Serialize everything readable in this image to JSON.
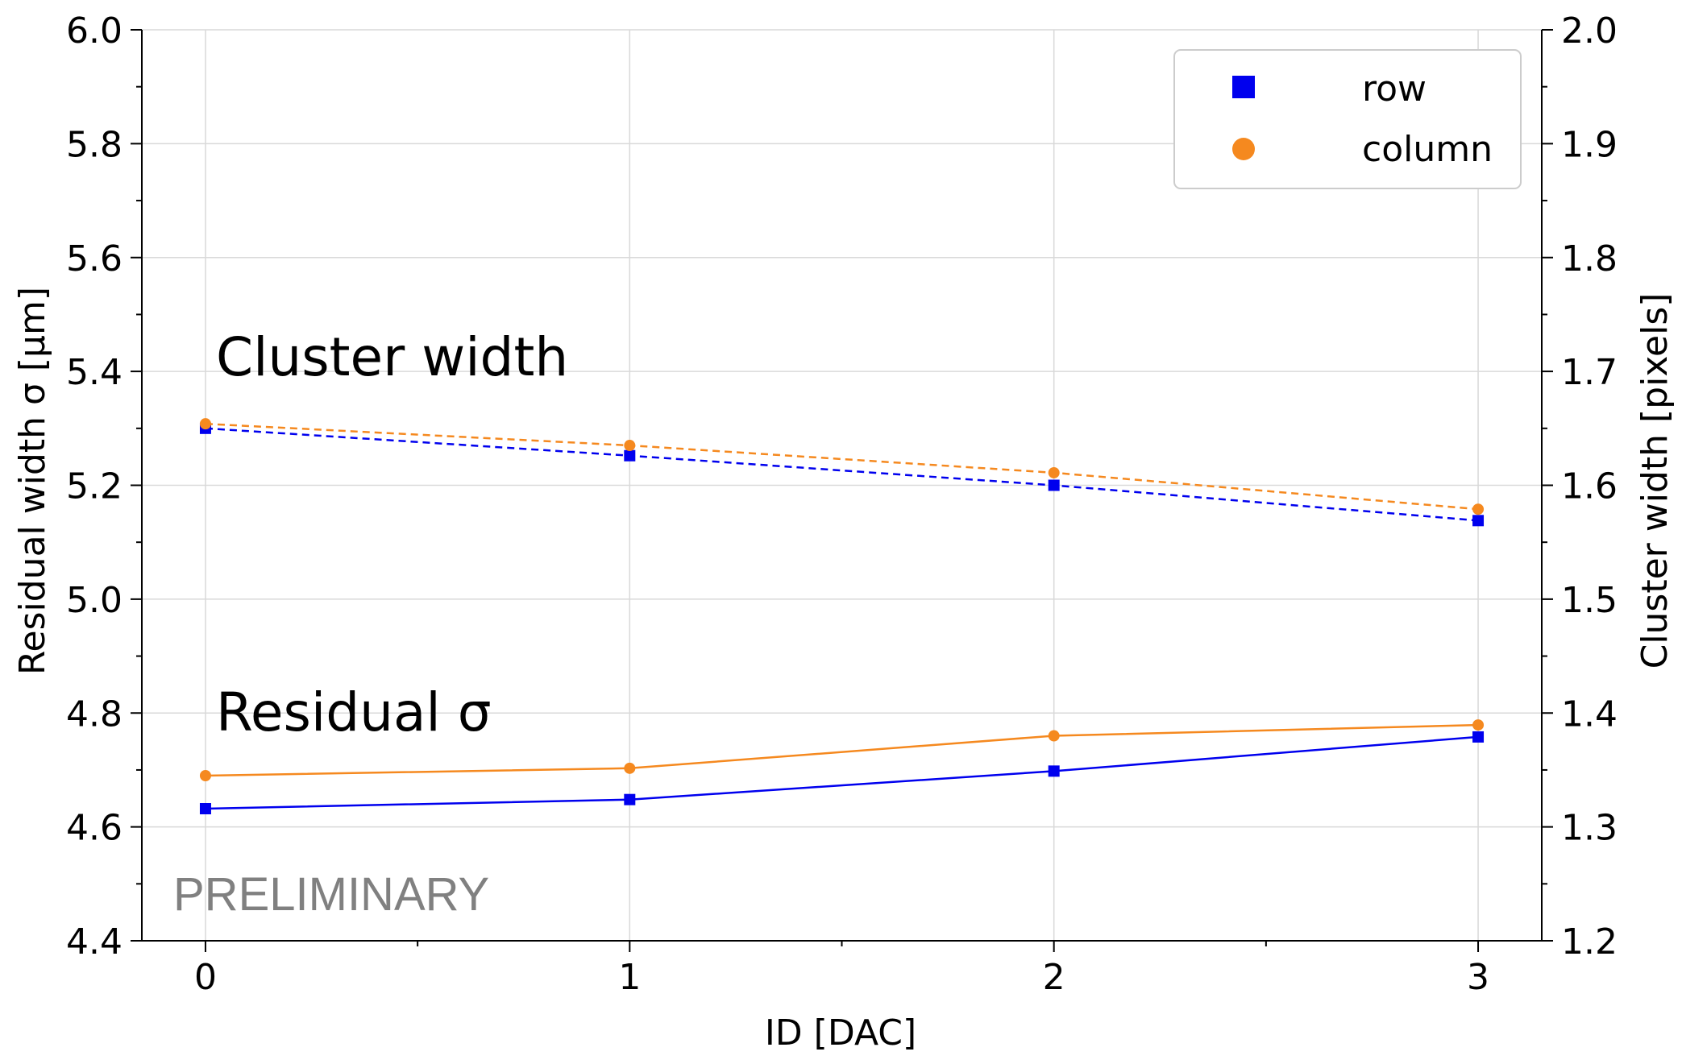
{
  "chart_data": {
    "type": "line",
    "xlabel": "ID [DAC]",
    "ylabel": "Residual width σ [μm]",
    "y2label": "Cluster width [pixels]",
    "x_ticks": [
      "0",
      "1",
      "2",
      "3"
    ],
    "y_ticks": [
      "4.4",
      "4.6",
      "4.8",
      "5.0",
      "5.2",
      "5.4",
      "5.6",
      "5.8",
      "6.0"
    ],
    "y2_ticks": [
      "1.2",
      "1.3",
      "1.4",
      "1.5",
      "1.6",
      "1.7",
      "1.8",
      "1.9",
      "2.0"
    ],
    "xlim": [
      -0.15,
      3.15
    ],
    "ylim": [
      4.4,
      6.0
    ],
    "y2lim": [
      1.2,
      2.0
    ],
    "grid": true,
    "legend_position": "top-right",
    "legend": [
      {
        "label": "row",
        "color": "#0000ee",
        "marker": "square"
      },
      {
        "label": "column",
        "color": "#f5891f",
        "marker": "circle"
      }
    ],
    "annotations": {
      "cluster_width": "Cluster width",
      "residual_sigma": "Residual σ",
      "preliminary": "PRELIMINARY"
    },
    "series": [
      {
        "name": "row",
        "group": "Residual σ",
        "axis": "left",
        "style": "solid",
        "marker": "square",
        "color": "#0000ee",
        "x": [
          0,
          1,
          2,
          3
        ],
        "values": [
          4.632,
          4.648,
          4.698,
          4.758
        ]
      },
      {
        "name": "column",
        "group": "Residual σ",
        "axis": "left",
        "style": "solid",
        "marker": "circle",
        "color": "#f5891f",
        "x": [
          0,
          1,
          2,
          3
        ],
        "values": [
          4.69,
          4.703,
          4.76,
          4.779
        ]
      },
      {
        "name": "row",
        "group": "Cluster width",
        "axis": "right",
        "style": "dashed",
        "marker": "square",
        "color": "#0000ee",
        "x": [
          0,
          1,
          2,
          3
        ],
        "values": [
          1.65,
          1.626,
          1.6,
          1.569
        ]
      },
      {
        "name": "column",
        "group": "Cluster width",
        "axis": "right",
        "style": "dashed",
        "marker": "circle",
        "color": "#f5891f",
        "x": [
          0,
          1,
          2,
          3
        ],
        "values": [
          1.654,
          1.635,
          1.611,
          1.579
        ]
      }
    ]
  }
}
